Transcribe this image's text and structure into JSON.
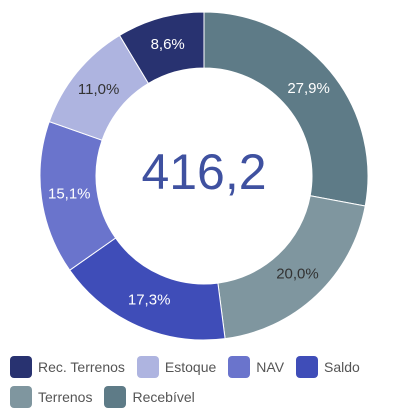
{
  "chart_data": {
    "type": "donut",
    "center_label": "416,2",
    "categories": [
      "Rec. Terrenos",
      "Estoque",
      "NAV",
      "Saldo",
      "Terrenos",
      "Recebível"
    ],
    "values": [
      8.6,
      11.0,
      15.1,
      17.3,
      20.0,
      27.9
    ],
    "value_labels": [
      "8,6%",
      "11,0%",
      "15,1%",
      "17,3%",
      "20,0%",
      "27,9%"
    ],
    "colors": [
      "#283270",
      "#aeb4e0",
      "#6a74cc",
      "#3f4db8",
      "#7f969f",
      "#5e7b87"
    ],
    "legend": "bottom"
  }
}
